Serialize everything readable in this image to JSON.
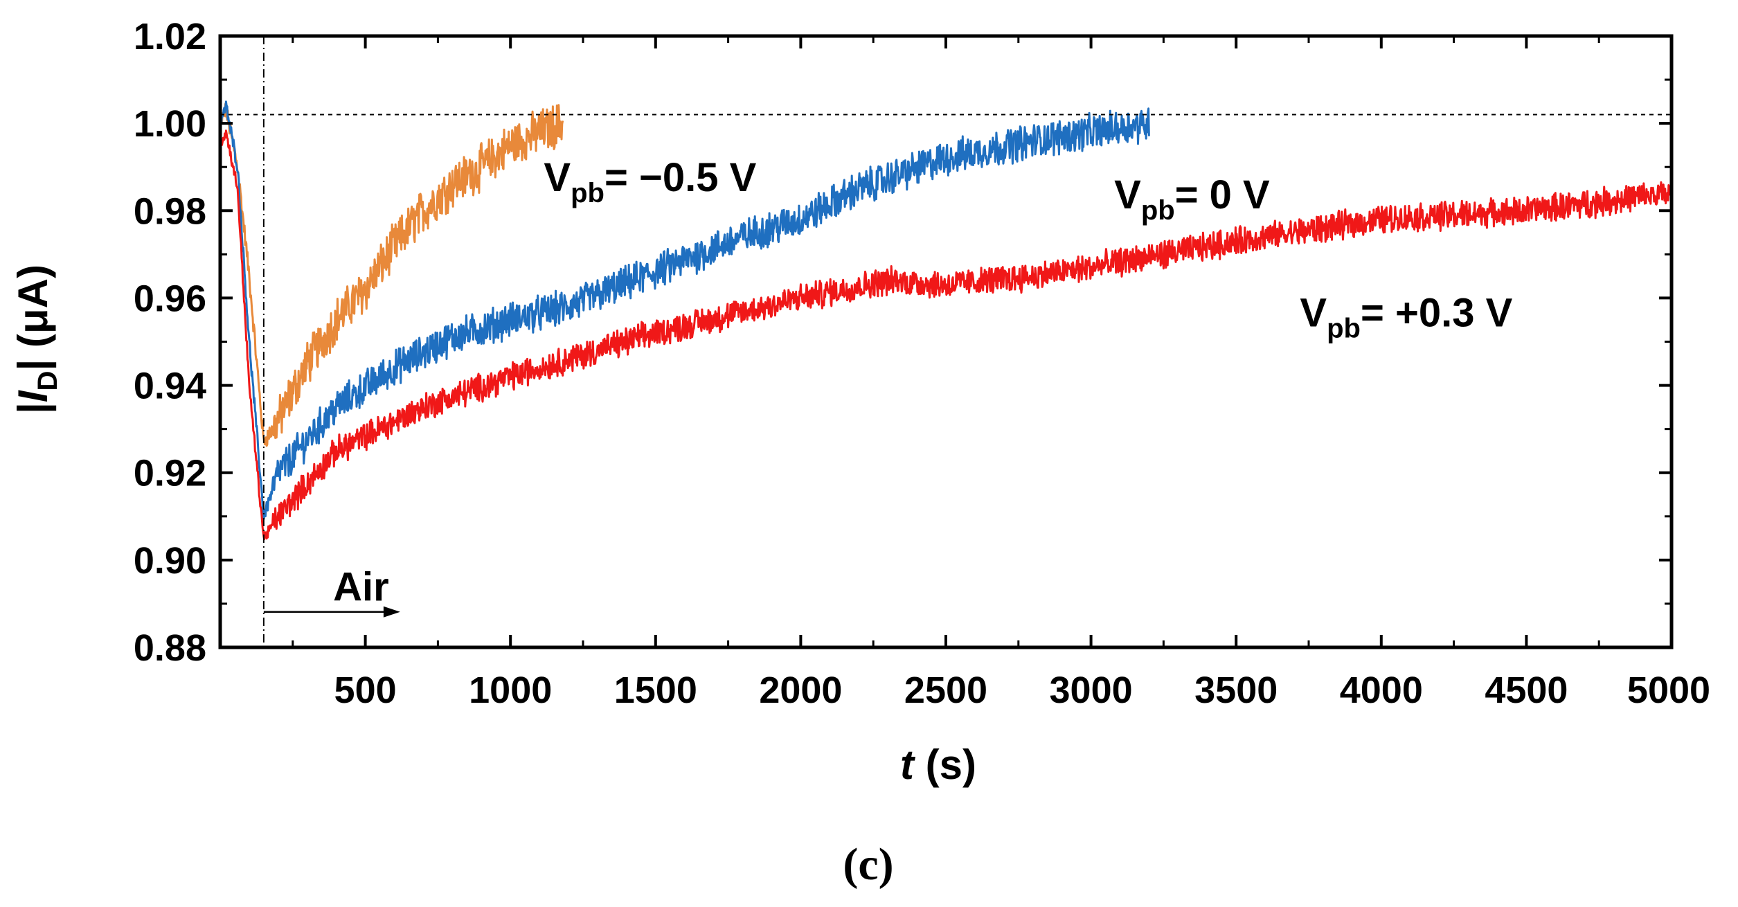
{
  "chart_data": {
    "type": "line",
    "title": "",
    "xlabel": "t",
    "xlabel_unit": "(s)",
    "ylabel_var": "I",
    "ylabel_sub": "D",
    "ylabel_unit": "(μA)",
    "xlim": [
      0,
      5000
    ],
    "ylim": [
      0.88,
      1.02
    ],
    "xticks": [
      500,
      1000,
      1500,
      2000,
      2500,
      3000,
      3500,
      4000,
      4500,
      5000
    ],
    "xtick_labels": [
      "500",
      "1000",
      "1500",
      "2000",
      "2500",
      "3000",
      "3500",
      "4000",
      "4500",
      "5000"
    ],
    "yticks": [
      0.88,
      0.9,
      0.92,
      0.94,
      0.96,
      0.98,
      1.0,
      1.02
    ],
    "ytick_labels": [
      "0.88",
      "0.90",
      "0.92",
      "0.94",
      "0.96",
      "0.98",
      "1.00",
      "1.02"
    ],
    "reference_line_y": 1.002,
    "air_inlet_t": 150,
    "air_arrow": {
      "label": "Air",
      "t_start": 150,
      "t_end": 620,
      "value": 0.894
    },
    "series": [
      {
        "name": "Vpb = −0.5 V",
        "label_main": "V",
        "label_sub": "pb",
        "label_rest": "= −0.5 V",
        "label_anchor": {
          "t": 1115,
          "value": 0.9845
        },
        "color": "#E8893A",
        "noise": 0.0045,
        "x": [
          0,
          20,
          60,
          100,
          150,
          200,
          300,
          400,
          500,
          600,
          700,
          800,
          900,
          1000,
          1100,
          1180
        ],
        "values": [
          1.0,
          1.003,
          0.99,
          0.965,
          0.927,
          0.932,
          0.945,
          0.955,
          0.962,
          0.972,
          0.98,
          0.986,
          0.99,
          0.995,
          0.998,
          1.0
        ]
      },
      {
        "name": "Vpb = 0 V",
        "label_main": "V",
        "label_sub": "pb",
        "label_rest": "= 0 V",
        "label_anchor": {
          "t": 3080,
          "value": 0.9805
        },
        "color": "#1F6FC0",
        "noise": 0.0035,
        "x": [
          0,
          20,
          60,
          100,
          150,
          200,
          400,
          600,
          800,
          1000,
          1200,
          1500,
          1800,
          2000,
          2200,
          2500,
          2800,
          3000,
          3200
        ],
        "values": [
          1.0,
          1.004,
          0.99,
          0.95,
          0.91,
          0.92,
          0.935,
          0.944,
          0.951,
          0.955,
          0.958,
          0.966,
          0.974,
          0.978,
          0.985,
          0.992,
          0.996,
          0.998,
          1.0
        ]
      },
      {
        "name": "Vpb = +0.3 V",
        "label_main": "V",
        "label_sub": "pb",
        "label_rest": "= +0.3 V",
        "label_anchor": {
          "t": 3720,
          "value": 0.9535
        },
        "color": "#F01818",
        "noise": 0.0028,
        "x": [
          0,
          20,
          60,
          100,
          150,
          200,
          400,
          700,
          1000,
          1500,
          2000,
          2300,
          2500,
          2800,
          3000,
          3500,
          4000,
          4500,
          5000
        ],
        "values": [
          0.995,
          0.998,
          0.985,
          0.94,
          0.905,
          0.91,
          0.925,
          0.935,
          0.942,
          0.952,
          0.96,
          0.964,
          0.963,
          0.965,
          0.967,
          0.973,
          0.978,
          0.98,
          0.984
        ]
      }
    ],
    "panel_label": "(c)"
  }
}
